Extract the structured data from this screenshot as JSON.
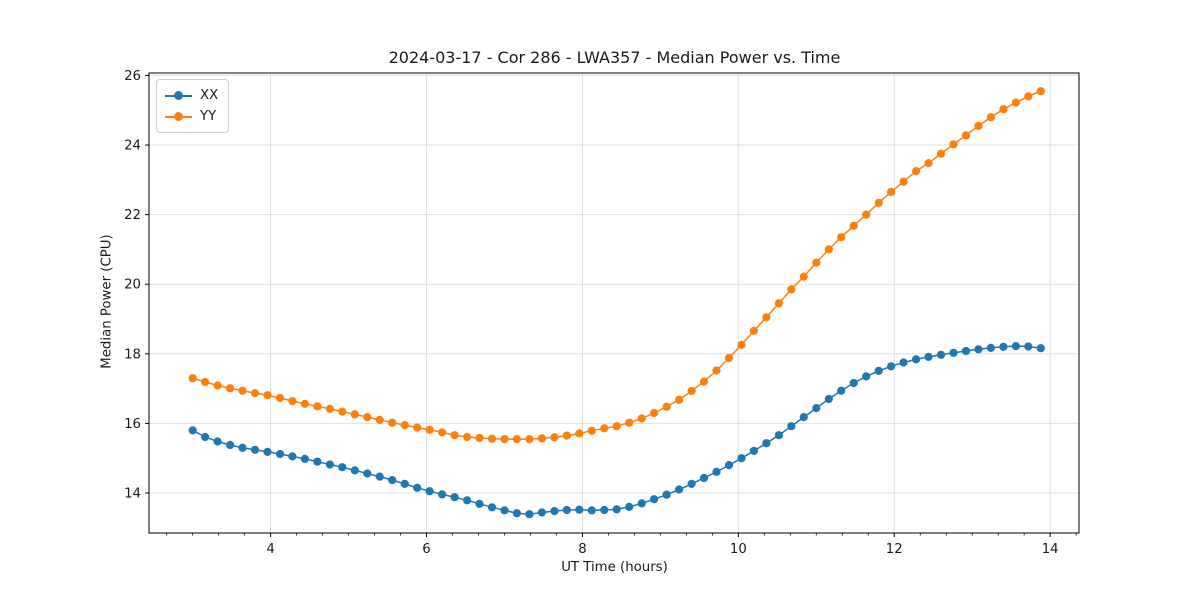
{
  "chart": {
    "title": "2024-03-17 - Cor 286 - LWA357 - Median Power vs. Time",
    "xlabel": "UT Time (hours)",
    "ylabel": "Median Power (CPU)",
    "legend": [
      {
        "label": "XX",
        "color": "#1f77b4"
      },
      {
        "label": "YY",
        "color": "#ff7f0e"
      }
    ]
  },
  "chart_data": {
    "type": "line",
    "title": "2024-03-17 - Cor 286 - LWA357 - Median Power vs. Time",
    "xlabel": "UT Time (hours)",
    "ylabel": "Median Power (CPU)",
    "marker": "circle",
    "grid": true,
    "legend_position": "upper left",
    "xlim": [
      2.44,
      14.37
    ],
    "ylim": [
      12.85,
      26.07
    ],
    "xticks": [
      4,
      6,
      8,
      10,
      12,
      14
    ],
    "yticks": [
      14,
      16,
      18,
      20,
      22,
      24,
      26
    ],
    "x_minor_step": 0.3333,
    "x": [
      3.0,
      3.16,
      3.32,
      3.48,
      3.64,
      3.8,
      3.96,
      4.12,
      4.28,
      4.44,
      4.6,
      4.76,
      4.92,
      5.08,
      5.24,
      5.4,
      5.56,
      5.72,
      5.88,
      6.04,
      6.2,
      6.36,
      6.52,
      6.68,
      6.84,
      7.0,
      7.16,
      7.32,
      7.48,
      7.64,
      7.8,
      7.96,
      8.12,
      8.28,
      8.44,
      8.6,
      8.76,
      8.92,
      9.08,
      9.24,
      9.4,
      9.56,
      9.72,
      9.88,
      10.04,
      10.2,
      10.36,
      10.52,
      10.68,
      10.84,
      11.0,
      11.16,
      11.32,
      11.48,
      11.64,
      11.8,
      11.96,
      12.12,
      12.28,
      12.44,
      12.6,
      12.76,
      12.92,
      13.08,
      13.24,
      13.4,
      13.56,
      13.72,
      13.88
    ],
    "series": [
      {
        "name": "XX",
        "color": "#1f77b4",
        "values": [
          15.8,
          15.61,
          15.48,
          15.38,
          15.3,
          15.24,
          15.18,
          15.12,
          15.05,
          14.98,
          14.9,
          14.82,
          14.74,
          14.65,
          14.56,
          14.47,
          14.37,
          14.26,
          14.15,
          14.05,
          13.96,
          13.88,
          13.79,
          13.69,
          13.59,
          13.5,
          13.42,
          13.39,
          13.44,
          13.48,
          13.51,
          13.52,
          13.5,
          13.51,
          13.53,
          13.6,
          13.7,
          13.82,
          13.95,
          14.1,
          14.26,
          14.43,
          14.61,
          14.8,
          15.0,
          15.21,
          15.43,
          15.66,
          15.92,
          16.18,
          16.44,
          16.7,
          16.94,
          17.16,
          17.35,
          17.51,
          17.64,
          17.75,
          17.84,
          17.91,
          17.97,
          18.03,
          18.08,
          18.13,
          18.17,
          18.2,
          18.22,
          18.21,
          18.16
        ]
      },
      {
        "name": "YY",
        "color": "#ff7f0e",
        "values": [
          17.3,
          17.19,
          17.09,
          17.01,
          16.94,
          16.87,
          16.81,
          16.73,
          16.64,
          16.56,
          16.49,
          16.42,
          16.34,
          16.26,
          16.18,
          16.1,
          16.02,
          15.95,
          15.88,
          15.82,
          15.74,
          15.66,
          15.61,
          15.58,
          15.56,
          15.55,
          15.55,
          15.55,
          15.57,
          15.6,
          15.65,
          15.71,
          15.79,
          15.86,
          15.92,
          16.02,
          16.14,
          16.3,
          16.48,
          16.68,
          16.93,
          17.2,
          17.52,
          17.88,
          18.26,
          18.66,
          19.05,
          19.45,
          19.85,
          20.22,
          20.62,
          21.0,
          21.35,
          21.68,
          22.0,
          22.34,
          22.65,
          22.95,
          23.25,
          23.48,
          23.75,
          24.02,
          24.28,
          24.55,
          24.8,
          25.03,
          25.22,
          25.4,
          25.55
        ]
      }
    ]
  }
}
